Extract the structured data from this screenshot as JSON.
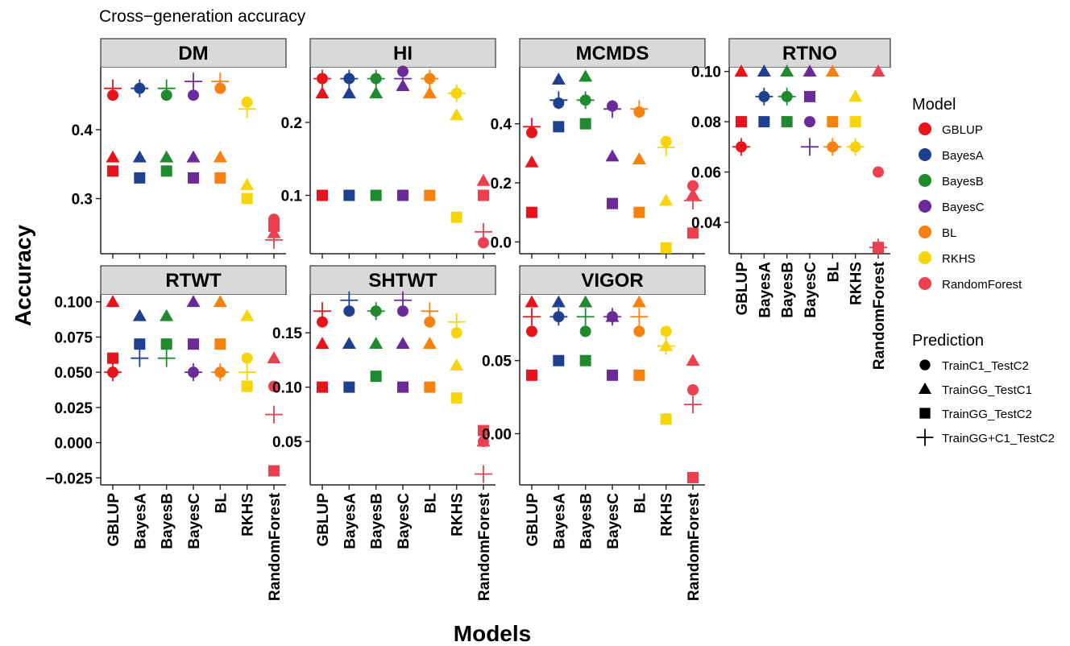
{
  "title": "Cross−generation accuracy",
  "xlabel": "Models",
  "ylabel": "Accuracy",
  "legend": {
    "model_title": "Model",
    "prediction_title": "Prediction"
  },
  "colors": {
    "GBLUP": "#e8141c",
    "BayesA": "#1f3f8f",
    "BayesB": "#1f8a2e",
    "BayesC": "#6a2a9a",
    "BL": "#f5820f",
    "RKHS": "#f7d50a",
    "RandomForest": "#ec4050"
  },
  "chart_data": {
    "type": "scatter",
    "facet_type": "faceted dot plot",
    "categories": [
      "GBLUP",
      "BayesA",
      "BayesB",
      "BayesC",
      "BL",
      "RKHS",
      "RandomForest"
    ],
    "models": [
      "GBLUP",
      "BayesA",
      "BayesB",
      "BayesC",
      "BL",
      "RKHS",
      "RandomForest"
    ],
    "predictions": [
      {
        "name": "TrainC1_TestC2",
        "shape": "circle"
      },
      {
        "name": "TrainGG_TestC1",
        "shape": "triangle"
      },
      {
        "name": "TrainGG_TestC2",
        "shape": "square"
      },
      {
        "name": "TrainGG+C1_TestC2",
        "shape": "plus"
      }
    ],
    "legend_position": "right",
    "grid": false,
    "panels": [
      {
        "title": "DM",
        "ylim": [
          0.22,
          0.49
        ],
        "yticks": [
          0.3,
          0.4
        ],
        "tick_labels": [
          "0.3",
          "0.4"
        ],
        "values": {
          "TrainC1_TestC2": [
            0.45,
            0.46,
            0.45,
            0.45,
            0.46,
            0.44,
            0.27
          ],
          "TrainGG_TestC1": [
            0.36,
            0.36,
            0.36,
            0.36,
            0.36,
            0.32,
            0.25
          ],
          "TrainGG_TestC2": [
            0.34,
            0.33,
            0.34,
            0.33,
            0.33,
            0.3,
            0.26
          ],
          "TrainGG+C1_TestC2": [
            0.46,
            0.46,
            0.46,
            0.47,
            0.47,
            0.43,
            0.24
          ]
        }
      },
      {
        "title": "HI",
        "ylim": [
          0.02,
          0.275
        ],
        "yticks": [
          0.1,
          0.2
        ],
        "tick_labels": [
          "0.1",
          "0.2"
        ],
        "values": {
          "TrainC1_TestC2": [
            0.26,
            0.26,
            0.26,
            0.27,
            0.26,
            0.24,
            0.035
          ],
          "TrainGG_TestC1": [
            0.24,
            0.24,
            0.24,
            0.25,
            0.24,
            0.21,
            0.12
          ],
          "TrainGG_TestC2": [
            0.1,
            0.1,
            0.1,
            0.1,
            0.1,
            0.07,
            0.1
          ],
          "TrainGG+C1_TestC2": [
            0.26,
            0.26,
            0.26,
            0.26,
            0.26,
            0.24,
            0.05
          ]
        }
      },
      {
        "title": "MCMDS",
        "ylim": [
          -0.04,
          0.59
        ],
        "yticks": [
          0.0,
          0.2,
          0.4
        ],
        "tick_labels": [
          "0.0",
          "0.2",
          "0.4"
        ],
        "values": {
          "TrainC1_TestC2": [
            0.37,
            0.47,
            0.48,
            0.46,
            0.44,
            0.34,
            0.19
          ],
          "TrainGG_TestC1": [
            0.27,
            0.55,
            0.56,
            0.29,
            0.28,
            0.14,
            0.16
          ],
          "TrainGG_TestC2": [
            0.1,
            0.39,
            0.4,
            0.13,
            0.1,
            -0.02,
            0.03
          ],
          "TrainGG+C1_TestC2": [
            0.39,
            0.48,
            0.48,
            0.45,
            0.45,
            0.32,
            0.14
          ]
        }
      },
      {
        "title": "RTNO",
        "ylim": [
          0.0275,
          0.1015
        ],
        "yticks": [
          0.04,
          0.06,
          0.08,
          0.1
        ],
        "tick_labels": [
          "0.04",
          "0.06",
          "0.08",
          "0.10"
        ],
        "values": {
          "TrainC1_TestC2": [
            0.07,
            0.09,
            0.09,
            0.08,
            0.07,
            0.07,
            0.06
          ],
          "TrainGG_TestC1": [
            0.1,
            0.1,
            0.1,
            0.1,
            0.1,
            0.09,
            0.1
          ],
          "TrainGG_TestC2": [
            0.08,
            0.08,
            0.08,
            0.09,
            0.08,
            0.08,
            0.03
          ],
          "TrainGG+C1_TestC2": [
            0.07,
            0.09,
            0.09,
            0.07,
            0.07,
            0.07,
            0.03
          ]
        }
      },
      {
        "title": "RTWT",
        "ylim": [
          -0.03,
          0.105
        ],
        "yticks": [
          -0.025,
          0.0,
          0.025,
          0.05,
          0.075,
          0.1
        ],
        "tick_labels": [
          "−0.025",
          "0.000",
          "0.025",
          "0.050",
          "0.075",
          "0.100"
        ],
        "values": {
          "TrainC1_TestC2": [
            0.05,
            0.07,
            0.07,
            0.05,
            0.05,
            0.06,
            0.04
          ],
          "TrainGG_TestC1": [
            0.1,
            0.09,
            0.09,
            0.1,
            0.1,
            0.09,
            0.06
          ],
          "TrainGG_TestC2": [
            0.06,
            0.07,
            0.07,
            0.07,
            0.07,
            0.04,
            -0.02
          ],
          "TrainGG+C1_TestC2": [
            0.05,
            0.06,
            0.06,
            0.05,
            0.05,
            0.05,
            0.02
          ]
        }
      },
      {
        "title": "SHTWT",
        "ylim": [
          0.01,
          0.185
        ],
        "yticks": [
          0.05,
          0.1,
          0.15
        ],
        "tick_labels": [
          "0.05",
          "0.10",
          "0.15"
        ],
        "values": {
          "TrainC1_TestC2": [
            0.16,
            0.17,
            0.17,
            0.17,
            0.16,
            0.15,
            0.05
          ],
          "TrainGG_TestC1": [
            0.14,
            0.14,
            0.14,
            0.14,
            0.14,
            0.12,
            0.05
          ],
          "TrainGG_TestC2": [
            0.1,
            0.1,
            0.11,
            0.1,
            0.1,
            0.09,
            0.06
          ],
          "TrainGG+C1_TestC2": [
            0.17,
            0.18,
            0.17,
            0.18,
            0.17,
            0.16,
            0.02
          ]
        }
      },
      {
        "title": "VIGOR",
        "ylim": [
          -0.035,
          0.095
        ],
        "yticks": [
          0.0,
          0.05
        ],
        "tick_labels": [
          "0.00",
          "0.05"
        ],
        "values": {
          "TrainC1_TestC2": [
            0.07,
            0.08,
            0.07,
            0.08,
            0.07,
            0.07,
            0.03
          ],
          "TrainGG_TestC1": [
            0.09,
            0.09,
            0.09,
            0.08,
            0.09,
            0.06,
            0.05
          ],
          "TrainGG_TestC2": [
            0.04,
            0.05,
            0.05,
            0.04,
            0.04,
            0.01,
            -0.03
          ],
          "TrainGG+C1_TestC2": [
            0.08,
            0.08,
            0.08,
            0.08,
            0.08,
            0.06,
            0.02
          ]
        }
      }
    ]
  }
}
